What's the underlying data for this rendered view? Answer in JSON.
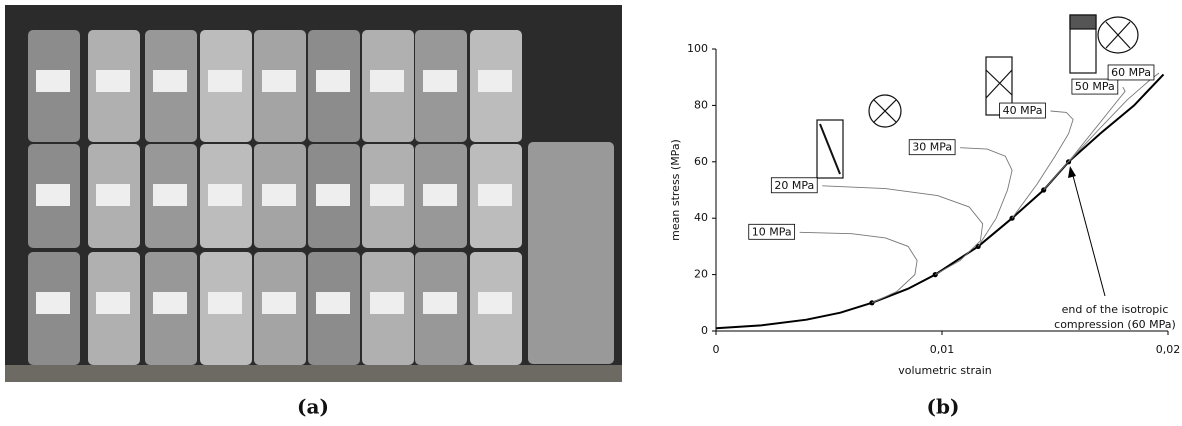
{
  "figure": {
    "captions": [
      "(a)",
      "(b)"
    ]
  },
  "chart_data": {
    "type": "line",
    "x_label": "volumetric strain",
    "y_label": "mean stress (MPa)",
    "xlim": [
      0,
      0.02
    ],
    "xticks": [
      0,
      {
        "value": 0.01,
        "label": "0,01"
      },
      {
        "value": 0.02,
        "label": "0,02"
      }
    ],
    "ylim": [
      0,
      100
    ],
    "yticks": [
      0,
      20,
      40,
      60,
      80,
      100
    ],
    "series": [
      {
        "color": "#000000",
        "style": "line",
        "x": [
          0,
          0.002,
          0.004,
          0.0055,
          0.0069,
          0.0085,
          0.0097,
          0.0116,
          0.0131,
          0.0145,
          0.0156,
          0.017,
          0.0185,
          0.0198
        ],
        "values": [
          1,
          2,
          4,
          6.5,
          10,
          15,
          20,
          30,
          40,
          50,
          60,
          70,
          80,
          91
        ]
      },
      {
        "color": "#000000",
        "style": "markers",
        "x": [
          0.0069,
          0.0097,
          0.0116,
          0.0131,
          0.0145,
          0.0156
        ],
        "values": [
          10,
          20,
          30,
          40,
          50,
          60
        ]
      },
      {
        "name": "10 MPa",
        "color": "#777777",
        "style": "branch",
        "x": [
          0.0069,
          0.008,
          0.0088,
          0.0089,
          0.0085,
          0.0075,
          0.006,
          0.0037
        ],
        "values": [
          10,
          14,
          20,
          25,
          30,
          33,
          34.5,
          35
        ]
      },
      {
        "name": "20 MPa",
        "color": "#777777",
        "style": "branch",
        "x": [
          0.0097,
          0.0108,
          0.0117,
          0.0118,
          0.0112,
          0.0098,
          0.0075,
          0.0047
        ],
        "values": [
          20,
          25,
          32,
          38,
          44,
          48,
          50.5,
          51.5
        ]
      },
      {
        "name": "30 MPa",
        "color": "#777777",
        "style": "branch",
        "x": [
          0.0116,
          0.0124,
          0.0129,
          0.0131,
          0.0128,
          0.012,
          0.0108
        ],
        "values": [
          30,
          40,
          50,
          57,
          62,
          64.5,
          65
        ]
      },
      {
        "name": "40 MPa",
        "color": "#777777",
        "style": "branch",
        "x": [
          0.0131,
          0.0142,
          0.015,
          0.0156,
          0.0158,
          0.0155,
          0.0148
        ],
        "values": [
          40,
          52,
          62,
          70,
          75,
          77.5,
          78
        ]
      },
      {
        "name": "50 MPa",
        "color": "#777777",
        "style": "branch",
        "x": [
          0.0145,
          0.0158,
          0.0168,
          0.0176,
          0.0181,
          0.018
        ],
        "values": [
          50,
          62,
          72,
          80,
          85,
          86.5
        ]
      },
      {
        "name": "60 MPa",
        "color": "#777777",
        "style": "branch",
        "x": [
          0.0156,
          0.017,
          0.0182,
          0.0192,
          0.0196
        ],
        "values": [
          60,
          72,
          82,
          89,
          91.5
        ]
      }
    ],
    "annotation": [
      "end of the isotropic",
      "compression (60 MPa)"
    ]
  }
}
